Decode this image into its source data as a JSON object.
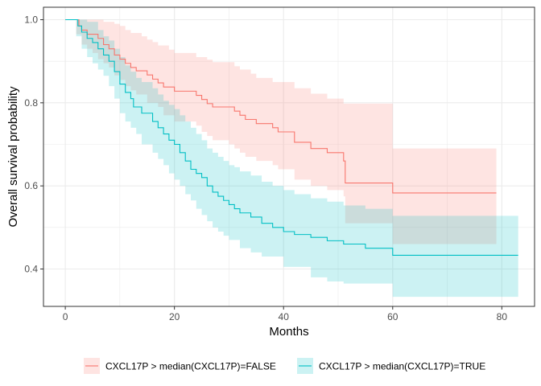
{
  "chart_data": {
    "type": "line",
    "subtype": "kaplan-meier survival curve with confidence bands",
    "xlabel": "Months",
    "ylabel": "Overall survival probability",
    "xlim": [
      -4,
      86
    ],
    "ylim": [
      0.31,
      1.03
    ],
    "xticks": [
      0,
      20,
      40,
      60,
      80
    ],
    "yticks": [
      0.4,
      0.6,
      0.8,
      1.0
    ],
    "xtick_labels": [
      "0",
      "20",
      "40",
      "60",
      "80"
    ],
    "ytick_labels": [
      "0.4",
      "0.6",
      "0.8",
      "1.0"
    ],
    "grid": true,
    "legend_position": "bottom",
    "series": [
      {
        "name": "CXCL17P > median(CXCL17P)=FALSE",
        "color": "#F8766D",
        "fill": "#FFE0E0",
        "steps": [
          [
            0,
            1.0
          ],
          [
            2,
            1.0
          ],
          [
            2.5,
            0.985
          ],
          [
            3,
            0.975
          ],
          [
            4,
            0.965
          ],
          [
            6,
            0.955
          ],
          [
            7,
            0.94
          ],
          [
            8,
            0.93
          ],
          [
            9,
            0.915
          ],
          [
            10,
            0.905
          ],
          [
            11,
            0.895
          ],
          [
            12,
            0.885
          ],
          [
            13,
            0.877
          ],
          [
            15,
            0.867
          ],
          [
            16,
            0.857
          ],
          [
            17,
            0.848
          ],
          [
            18,
            0.838
          ],
          [
            20,
            0.828
          ],
          [
            24,
            0.818
          ],
          [
            25,
            0.808
          ],
          [
            26,
            0.798
          ],
          [
            27,
            0.79
          ],
          [
            31,
            0.78
          ],
          [
            32,
            0.77
          ],
          [
            33,
            0.76
          ],
          [
            35,
            0.75
          ],
          [
            38,
            0.74
          ],
          [
            39,
            0.73
          ],
          [
            42,
            0.705
          ],
          [
            45,
            0.69
          ],
          [
            48,
            0.68
          ],
          [
            51,
            0.66
          ],
          [
            51.3,
            0.607
          ],
          [
            60,
            0.583
          ],
          [
            79,
            0.583
          ]
        ],
        "upper": [
          [
            0,
            1.0
          ],
          [
            2,
            1.0
          ],
          [
            5,
            1.0
          ],
          [
            7,
            0.995
          ],
          [
            9,
            0.99
          ],
          [
            10,
            0.985
          ],
          [
            11,
            0.975
          ],
          [
            12,
            0.968
          ],
          [
            14,
            0.96
          ],
          [
            15,
            0.952
          ],
          [
            16,
            0.946
          ],
          [
            17,
            0.938
          ],
          [
            19,
            0.928
          ],
          [
            20,
            0.92
          ],
          [
            24,
            0.91
          ],
          [
            26,
            0.904
          ],
          [
            27,
            0.898
          ],
          [
            31,
            0.888
          ],
          [
            32,
            0.88
          ],
          [
            34,
            0.87
          ],
          [
            35,
            0.86
          ],
          [
            38,
            0.85
          ],
          [
            42,
            0.835
          ],
          [
            45,
            0.822
          ],
          [
            48,
            0.81
          ],
          [
            51,
            0.798
          ],
          [
            60,
            0.69
          ],
          [
            79,
            0.69
          ]
        ],
        "lower": [
          [
            0,
            1.0
          ],
          [
            2,
            0.965
          ],
          [
            3,
            0.94
          ],
          [
            4,
            0.93
          ],
          [
            5,
            0.92
          ],
          [
            6,
            0.905
          ],
          [
            7,
            0.895
          ],
          [
            8,
            0.885
          ],
          [
            9,
            0.866
          ],
          [
            10,
            0.855
          ],
          [
            11,
            0.84
          ],
          [
            12,
            0.83
          ],
          [
            13,
            0.82
          ],
          [
            15,
            0.8
          ],
          [
            17,
            0.79
          ],
          [
            18,
            0.77
          ],
          [
            20,
            0.755
          ],
          [
            24,
            0.745
          ],
          [
            25,
            0.73
          ],
          [
            26,
            0.72
          ],
          [
            27,
            0.71
          ],
          [
            30,
            0.7
          ],
          [
            31,
            0.69
          ],
          [
            32,
            0.68
          ],
          [
            33,
            0.67
          ],
          [
            35,
            0.66
          ],
          [
            38,
            0.65
          ],
          [
            39,
            0.64
          ],
          [
            42,
            0.615
          ],
          [
            45,
            0.6
          ],
          [
            48,
            0.59
          ],
          [
            51,
            0.575
          ],
          [
            51.3,
            0.51
          ],
          [
            60,
            0.46
          ],
          [
            79,
            0.46
          ]
        ]
      },
      {
        "name": "CXCL17P > median(CXCL17P)=TRUE",
        "color": "#00BFC4",
        "fill": "#CCF0F1",
        "steps": [
          [
            0,
            1.0
          ],
          [
            2,
            1.0
          ],
          [
            2.3,
            0.985
          ],
          [
            3,
            0.97
          ],
          [
            4,
            0.955
          ],
          [
            5,
            0.945
          ],
          [
            6,
            0.93
          ],
          [
            7,
            0.915
          ],
          [
            8,
            0.9
          ],
          [
            9,
            0.875
          ],
          [
            10,
            0.845
          ],
          [
            11,
            0.825
          ],
          [
            12,
            0.81
          ],
          [
            12.5,
            0.79
          ],
          [
            14,
            0.775
          ],
          [
            16,
            0.755
          ],
          [
            17,
            0.74
          ],
          [
            18,
            0.725
          ],
          [
            19,
            0.71
          ],
          [
            20,
            0.7
          ],
          [
            21,
            0.68
          ],
          [
            22,
            0.66
          ],
          [
            23,
            0.64
          ],
          [
            24,
            0.63
          ],
          [
            25,
            0.62
          ],
          [
            26,
            0.6
          ],
          [
            27,
            0.585
          ],
          [
            28,
            0.575
          ],
          [
            29,
            0.565
          ],
          [
            30,
            0.555
          ],
          [
            31,
            0.545
          ],
          [
            32,
            0.535
          ],
          [
            34,
            0.525
          ],
          [
            36,
            0.51
          ],
          [
            38,
            0.5
          ],
          [
            40,
            0.49
          ],
          [
            42,
            0.483
          ],
          [
            45,
            0.476
          ],
          [
            48,
            0.468
          ],
          [
            51,
            0.46
          ],
          [
            55,
            0.45
          ],
          [
            60,
            0.433
          ],
          [
            83,
            0.433
          ]
        ],
        "upper": [
          [
            0,
            1.0
          ],
          [
            2,
            1.0
          ],
          [
            4,
            0.995
          ],
          [
            6,
            0.975
          ],
          [
            7,
            0.96
          ],
          [
            8,
            0.95
          ],
          [
            9,
            0.93
          ],
          [
            10,
            0.91
          ],
          [
            11,
            0.89
          ],
          [
            12,
            0.875
          ],
          [
            13,
            0.86
          ],
          [
            14,
            0.85
          ],
          [
            16,
            0.835
          ],
          [
            17,
            0.82
          ],
          [
            18,
            0.805
          ],
          [
            19,
            0.795
          ],
          [
            20,
            0.785
          ],
          [
            21,
            0.77
          ],
          [
            22,
            0.755
          ],
          [
            23,
            0.74
          ],
          [
            24,
            0.725
          ],
          [
            25,
            0.71
          ],
          [
            26,
            0.69
          ],
          [
            27,
            0.68
          ],
          [
            28,
            0.67
          ],
          [
            29,
            0.66
          ],
          [
            30,
            0.65
          ],
          [
            31,
            0.645
          ],
          [
            32,
            0.635
          ],
          [
            34,
            0.625
          ],
          [
            36,
            0.61
          ],
          [
            38,
            0.6
          ],
          [
            40,
            0.59
          ],
          [
            42,
            0.58
          ],
          [
            45,
            0.57
          ],
          [
            48,
            0.562
          ],
          [
            51,
            0.553
          ],
          [
            55,
            0.545
          ],
          [
            60,
            0.528
          ],
          [
            83,
            0.528
          ]
        ],
        "lower": [
          [
            0,
            1.0
          ],
          [
            2,
            0.96
          ],
          [
            3,
            0.93
          ],
          [
            4,
            0.91
          ],
          [
            5,
            0.895
          ],
          [
            6,
            0.88
          ],
          [
            7,
            0.865
          ],
          [
            8,
            0.84
          ],
          [
            9,
            0.81
          ],
          [
            10,
            0.775
          ],
          [
            11,
            0.755
          ],
          [
            12,
            0.74
          ],
          [
            13,
            0.725
          ],
          [
            14,
            0.7
          ],
          [
            16,
            0.68
          ],
          [
            17,
            0.665
          ],
          [
            18,
            0.65
          ],
          [
            19,
            0.63
          ],
          [
            20,
            0.615
          ],
          [
            21,
            0.6
          ],
          [
            22,
            0.58
          ],
          [
            23,
            0.565
          ],
          [
            24,
            0.545
          ],
          [
            25,
            0.53
          ],
          [
            26,
            0.515
          ],
          [
            27,
            0.5
          ],
          [
            28,
            0.49
          ],
          [
            29,
            0.48
          ],
          [
            30,
            0.47
          ],
          [
            32,
            0.45
          ],
          [
            34,
            0.44
          ],
          [
            36,
            0.43
          ],
          [
            40,
            0.405
          ],
          [
            45,
            0.38
          ],
          [
            48,
            0.37
          ],
          [
            51,
            0.365
          ],
          [
            60,
            0.333
          ],
          [
            83,
            0.333
          ]
        ]
      }
    ]
  }
}
